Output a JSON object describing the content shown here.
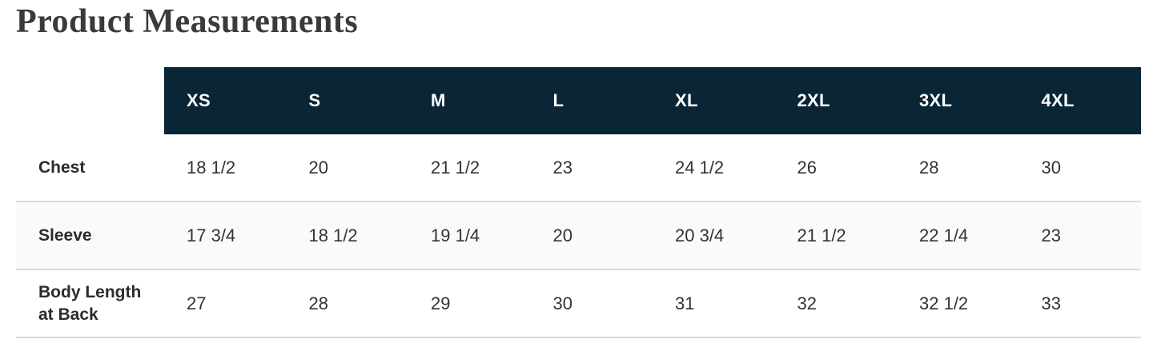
{
  "page": {
    "title": "Product Measurements"
  },
  "table": {
    "sizes": [
      "XS",
      "S",
      "M",
      "L",
      "XL",
      "2XL",
      "3XL",
      "4XL"
    ],
    "rows": [
      {
        "label": "Chest",
        "values": [
          "18 1/2",
          "20",
          "21 1/2",
          "23",
          "24 1/2",
          "26",
          "28",
          "30"
        ]
      },
      {
        "label": "Sleeve",
        "values": [
          "17 3/4",
          "18 1/2",
          "19 1/4",
          "20",
          "20 3/4",
          "21 1/2",
          "22 1/4",
          "23"
        ]
      },
      {
        "label": "Body Length at Back",
        "values": [
          "27",
          "28",
          "29",
          "30",
          "31",
          "32",
          "32 1/2",
          "33"
        ]
      }
    ],
    "colors": {
      "header_bg": "#0a2536",
      "header_text": "#ffffff",
      "row_alt_bg": "#fafafa",
      "border": "#dbdbdb",
      "body_text": "#333333",
      "label_text": "#2b2b2b",
      "title_text": "#3a3a3a"
    }
  }
}
